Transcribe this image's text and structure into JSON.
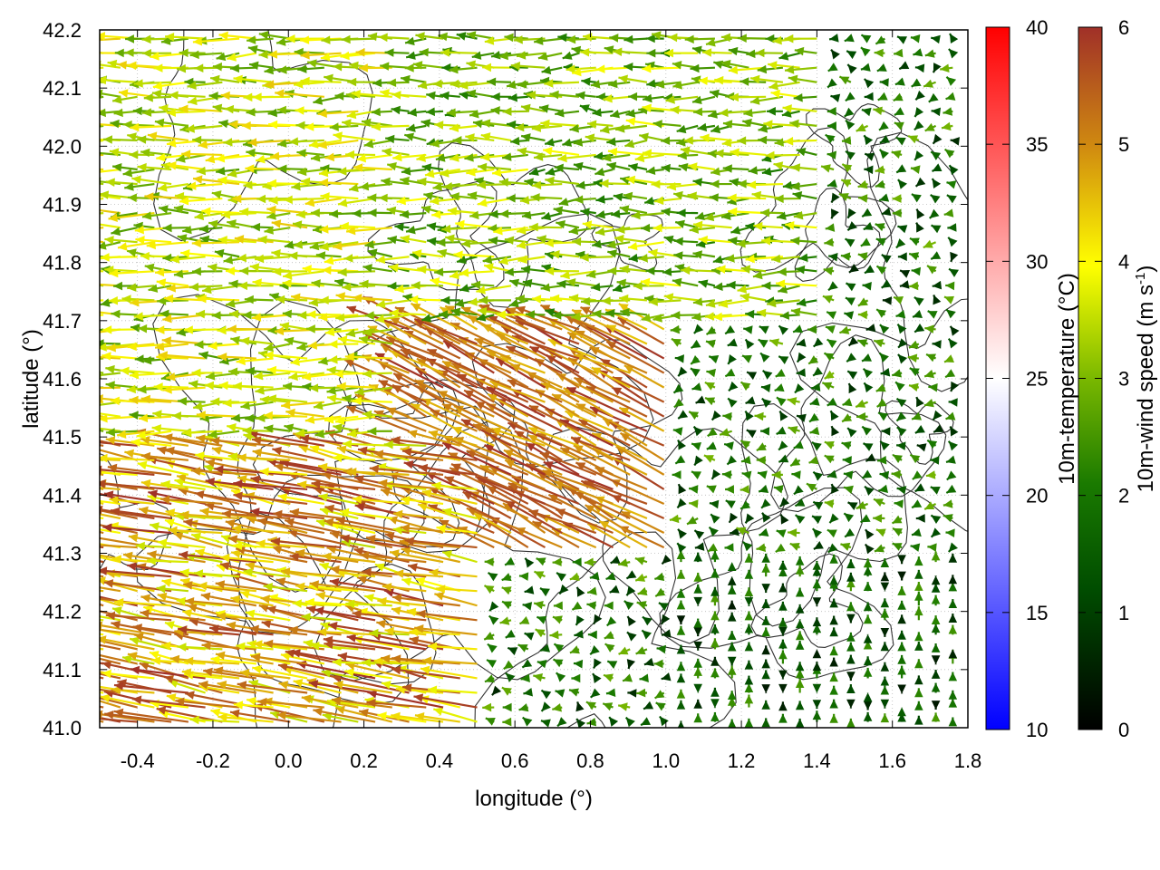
{
  "chart_data": {
    "type": "vector-field",
    "xlabel": "longitude (°)",
    "ylabel": "latitude (°)",
    "xlim": [
      -0.5,
      1.8
    ],
    "ylim": [
      41.0,
      42.2
    ],
    "x_ticks": [
      -0.4,
      -0.2,
      0.0,
      0.2,
      0.4,
      0.6,
      0.8,
      1.0,
      1.2,
      1.4,
      1.6,
      1.8
    ],
    "x_tick_labels": [
      "-0.4",
      "-0.2",
      "0.0",
      "0.2",
      "0.4",
      "0.6",
      "0.8",
      "1.0",
      "1.2",
      "1.4",
      "1.6",
      "1.8"
    ],
    "y_ticks": [
      41.0,
      41.1,
      41.2,
      41.3,
      41.4,
      41.5,
      41.6,
      41.7,
      41.8,
      41.9,
      42.0,
      42.1,
      42.2
    ],
    "y_tick_labels": [
      "41.0",
      "41.1",
      "41.2",
      "41.3",
      "41.4",
      "41.5",
      "41.6",
      "41.7",
      "41.8",
      "41.9",
      "42.0",
      "42.1",
      "42.2"
    ],
    "grid": true,
    "colorbars": [
      {
        "name": "temperature",
        "label": "10m-temperature (°C)",
        "range": [
          10,
          40
        ],
        "ticks": [
          10,
          15,
          20,
          25,
          30,
          35,
          40
        ],
        "tick_labels": [
          "10",
          "15",
          "20",
          "25",
          "30",
          "35",
          "40"
        ],
        "colors": [
          "#0000ff",
          "#ffffff",
          "#ff0000"
        ]
      },
      {
        "name": "wind-speed",
        "label": "10m-wind speed (m s",
        "label_sup": "-1",
        "label_end": ")",
        "range": [
          0,
          6
        ],
        "ticks": [
          0,
          1,
          2,
          3,
          4,
          5,
          6
        ],
        "tick_labels": [
          "0",
          "1",
          "2",
          "3",
          "4",
          "5",
          "6"
        ],
        "colors": [
          "#000000",
          "#005500",
          "#1a7a00",
          "#7ab800",
          "#ffff00",
          "#d08a10",
          "#a03028"
        ]
      }
    ],
    "vector_field": {
      "description_units": "wind vectors colored by speed (m s-1)",
      "regions": [
        {
          "lon": [
            -0.5,
            0.5
          ],
          "lat": [
            41.0,
            41.5
          ],
          "u": -0.18,
          "v": 0.02,
          "speed": [
            3.5,
            6
          ]
        },
        {
          "lon": [
            -0.5,
            0.3
          ],
          "lat": [
            41.5,
            42.2
          ],
          "u": -0.15,
          "v": 0.0,
          "speed": [
            2.5,
            4.5
          ]
        },
        {
          "lon": [
            0.3,
            1.0
          ],
          "lat": [
            41.3,
            41.7
          ],
          "u": -0.16,
          "v": 0.05,
          "speed": [
            4.5,
            6
          ]
        },
        {
          "lon": [
            0.3,
            1.4
          ],
          "lat": [
            41.7,
            42.2
          ],
          "u": -0.14,
          "v": 0.0,
          "speed": [
            2,
            4
          ]
        },
        {
          "lon": [
            1.0,
            1.8
          ],
          "lat": [
            41.3,
            42.2
          ],
          "u": -0.06,
          "v": 0.0,
          "speed": [
            0.5,
            3
          ]
        },
        {
          "lon": [
            1.0,
            1.8
          ],
          "lat": [
            41.0,
            41.3
          ],
          "u": 0.0,
          "v": 0.04,
          "speed": [
            0.3,
            2.5
          ]
        }
      ]
    }
  }
}
